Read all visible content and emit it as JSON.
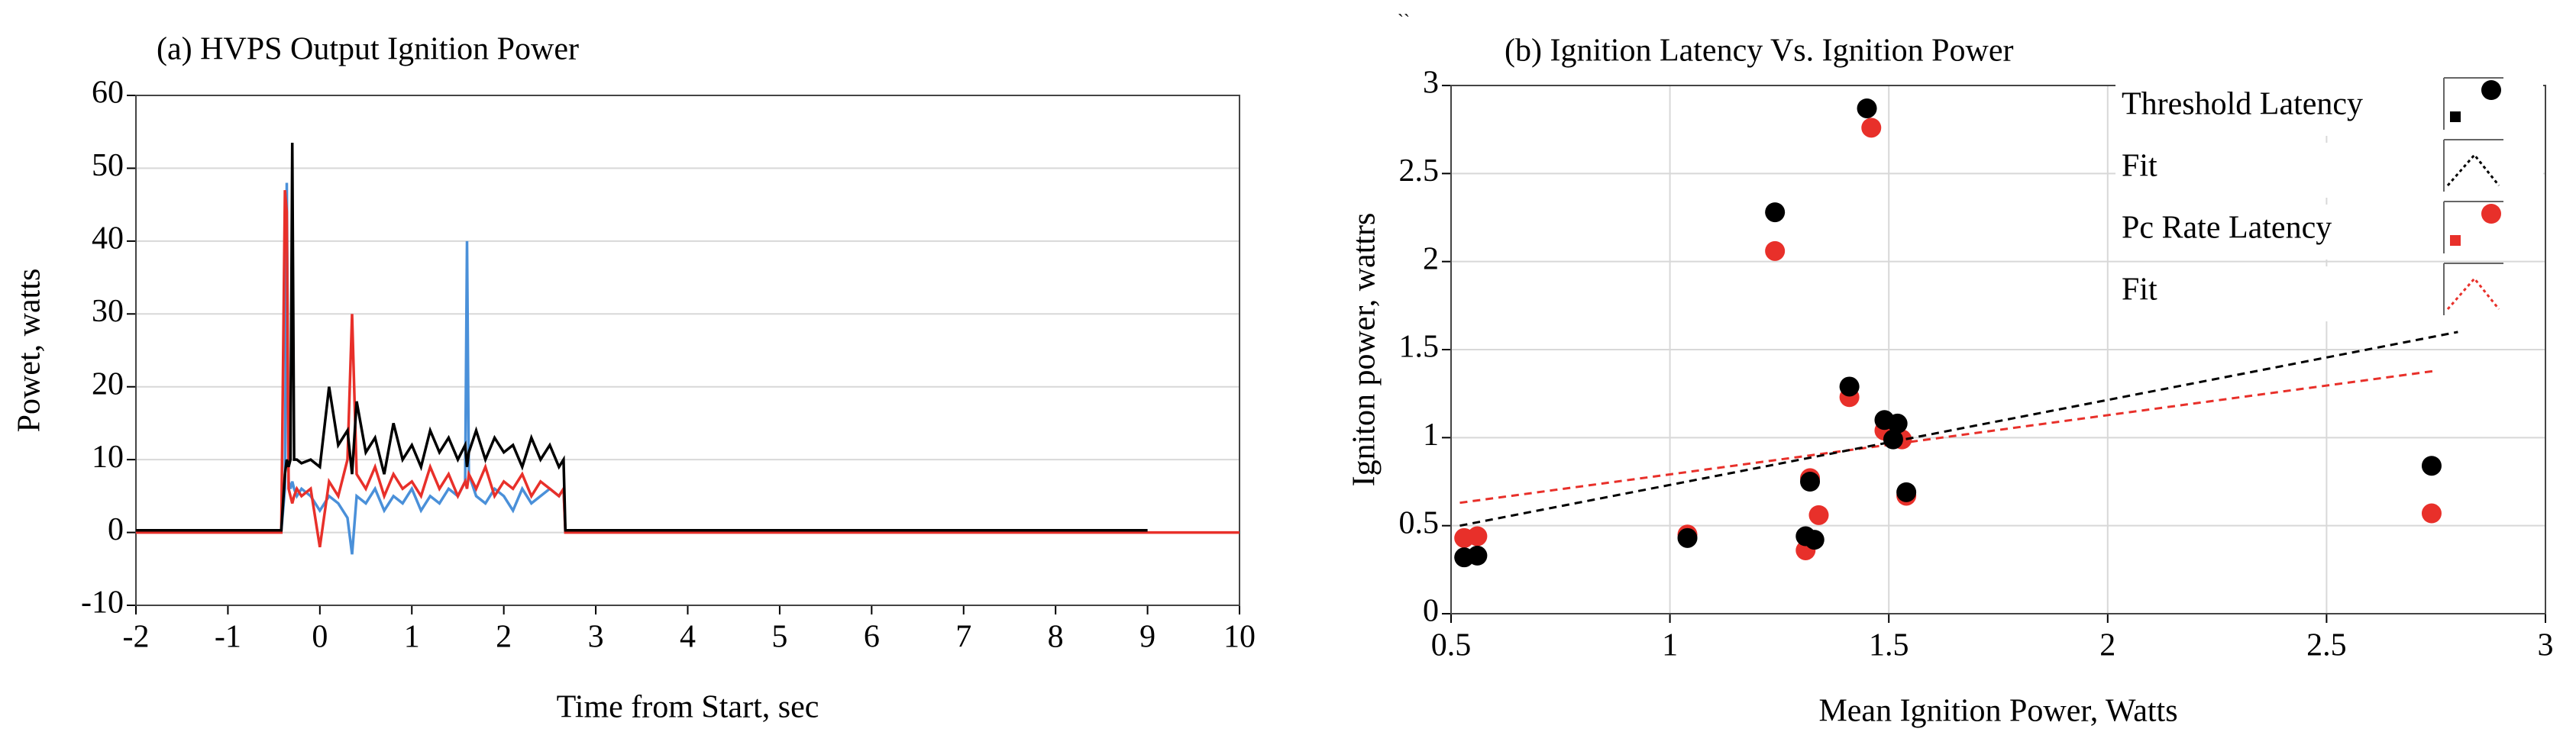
{
  "chart_data": [
    {
      "type": "line",
      "title": "(a) HVPS Output Ignition Power",
      "x_label": "Time from  Start, sec",
      "y_label": "Powet, watts",
      "x": [
        -2,
        -0.42,
        -0.38,
        -0.36,
        -0.34,
        -0.32,
        -0.3,
        -0.28,
        -0.25,
        -0.2,
        -0.1,
        0,
        0.1,
        0.2,
        0.3,
        0.35,
        0.4,
        0.5,
        0.6,
        0.7,
        0.8,
        0.9,
        1.0,
        1.1,
        1.2,
        1.3,
        1.4,
        1.5,
        1.58,
        1.6,
        1.62,
        1.7,
        1.8,
        1.9,
        2.0,
        2.1,
        2.2,
        2.3,
        2.4,
        2.5,
        2.6,
        2.65,
        2.67,
        9,
        9.02,
        10
      ],
      "series": [
        {
          "color": "#4a90d9",
          "values": [
            0.2,
            0.2,
            6,
            48,
            7,
            6,
            7,
            6,
            5,
            6,
            5,
            3,
            5,
            4,
            2,
            -3,
            5,
            4,
            6,
            3,
            5,
            4,
            6,
            3,
            5,
            4,
            6,
            5,
            7,
            40,
            8,
            5,
            4,
            6,
            5,
            3,
            6,
            4,
            5,
            6,
            5,
            6,
            0.2,
            0.2,
            null,
            null
          ]
        },
        {
          "color": "#e8302a",
          "values": [
            0,
            0,
            47,
            44,
            6,
            5,
            4,
            5,
            6,
            5,
            6,
            -2,
            7,
            5,
            10,
            30,
            8,
            6,
            9,
            5,
            8,
            6,
            7,
            5,
            9,
            6,
            8,
            5,
            7,
            6,
            8,
            6,
            9,
            5,
            7,
            6,
            8,
            5,
            7,
            6,
            5,
            6,
            0,
            0,
            0,
            0
          ]
        },
        {
          "color": "#000000",
          "values": [
            0.3,
            0.3,
            8,
            10,
            9,
            10,
            53.5,
            10,
            10,
            9.5,
            10,
            9,
            20,
            12,
            14,
            8,
            18,
            11,
            13,
            8,
            15,
            10,
            12,
            9,
            14,
            11,
            13,
            10,
            12,
            9,
            11,
            14,
            10,
            13,
            11,
            12,
            9,
            13,
            10,
            12,
            9,
            10,
            0.3,
            0.3,
            null,
            null
          ]
        }
      ],
      "xlim": [
        -2,
        10
      ],
      "xticks": [
        -2,
        -1,
        0,
        1,
        2,
        3,
        4,
        5,
        6,
        7,
        8,
        9,
        10
      ],
      "ylim": [
        -10,
        60
      ],
      "yticks": [
        -10,
        0,
        10,
        20,
        30,
        40,
        50,
        60
      ],
      "grid": "y"
    },
    {
      "type": "scatter",
      "title": "(b) Ignition Latency Vs. Ignition Power",
      "annotation": "``",
      "x_label": "Mean Ignition Power, Watts",
      "y_label": "Igniton power, wattrs",
      "series": [
        {
          "name": "Threshold Latency",
          "color": "#000000",
          "style": "marker",
          "x": [
            0.53,
            0.56,
            1.04,
            1.24,
            1.31,
            1.32,
            1.33,
            1.41,
            1.45,
            1.49,
            1.51,
            1.52,
            1.54,
            2.74
          ],
          "values": [
            0.32,
            0.33,
            0.43,
            2.28,
            0.44,
            0.75,
            0.42,
            1.29,
            2.87,
            1.1,
            0.99,
            1.08,
            0.69,
            0.84
          ]
        },
        {
          "name": "Fit",
          "color": "#000000",
          "style": "dashed",
          "x": [
            0.52,
            2.8
          ],
          "values": [
            0.5,
            1.6
          ]
        },
        {
          "name": "Pc Rate Latency",
          "color": "#e8302a",
          "style": "marker",
          "x": [
            0.53,
            0.56,
            1.04,
            1.24,
            1.31,
            1.32,
            1.34,
            1.41,
            1.46,
            1.49,
            1.51,
            1.53,
            1.54,
            2.74
          ],
          "values": [
            0.43,
            0.44,
            0.45,
            2.06,
            0.36,
            0.77,
            0.56,
            1.23,
            2.76,
            1.04,
            1.0,
            0.99,
            0.67,
            0.57
          ]
        },
        {
          "name": "Fit",
          "color": "#e8302a",
          "style": "dashed",
          "x": [
            0.52,
            2.75
          ],
          "values": [
            0.63,
            1.38
          ]
        }
      ],
      "xlim": [
        0.5,
        3
      ],
      "xticks": [
        0.5,
        1,
        1.5,
        2,
        2.5,
        3
      ],
      "ylim": [
        0,
        3
      ],
      "yticks": [
        0,
        0.5,
        1,
        1.5,
        2,
        2.5,
        3
      ],
      "grid": "both",
      "legend": "upper right"
    }
  ]
}
